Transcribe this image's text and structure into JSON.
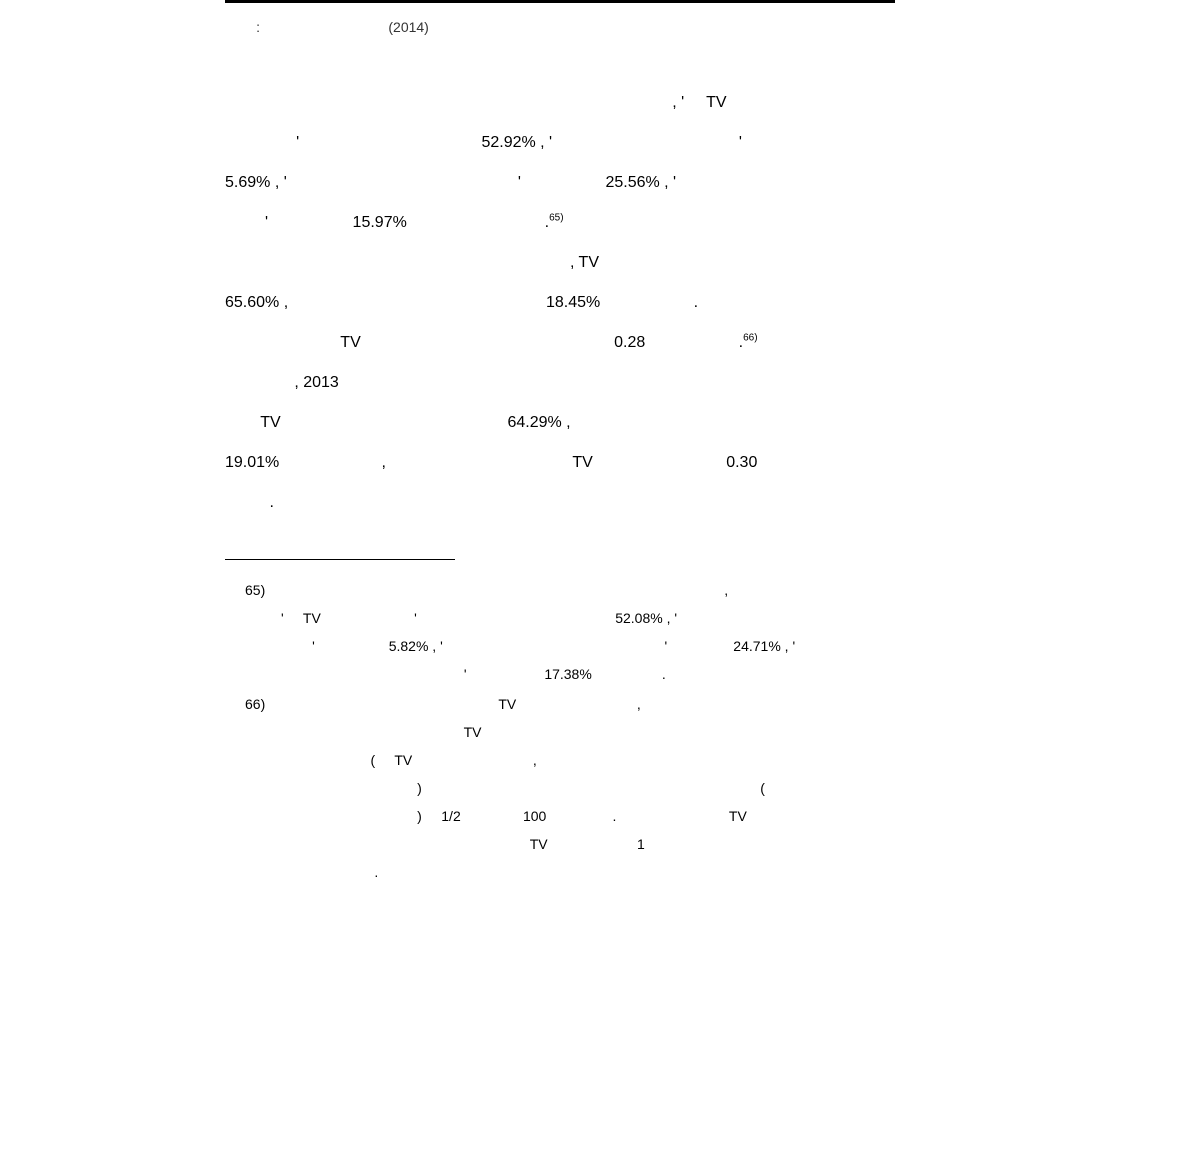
{
  "source": {
    "label": ":",
    "year": "(2014)"
  },
  "paragraphs": {
    "p1": {
      "s1": ", '",
      "s2": "TV",
      "s3": "'",
      "s4": "52.92% , '",
      "s5": "'",
      "s6": "5.69% , '",
      "s7": "'",
      "s8": "25.56% , '",
      "s9": "'",
      "s10": "15.97%",
      "s11": ".",
      "sup1": "65)"
    },
    "p2": {
      "s1": ", TV",
      "s2": "65.60% ,",
      "s3": "18.45%",
      "s4": ".",
      "s5": "TV",
      "s6": "0.28",
      "s7": ".",
      "sup1": "66)"
    },
    "p3": {
      "s1": ", 2013",
      "s2": "TV",
      "s3": "64.29% ,",
      "s4": "19.01%",
      "s5": ",",
      "s6": "TV",
      "s7": "0.30",
      "s8": "."
    }
  },
  "footnotes": {
    "f65": {
      "num": "65)",
      "s1": ",",
      "s2": "'",
      "s3": "TV",
      "s4": "'",
      "s5": "52.08% , '",
      "s6": "'",
      "s7": "5.82% , '",
      "s8": "'",
      "s9": "24.71% , '",
      "s10": "'",
      "s11": "17.38%",
      "s12": "."
    },
    "f66": {
      "num": "66)",
      "s1": "TV",
      "s2": ",",
      "s3": "TV",
      "s4": "(",
      "s5": "TV",
      "s6": ",",
      "s7": ")",
      "s8": "(",
      "s9": ")",
      "s10": "1/2",
      "s11": "100",
      "s12": ".",
      "s13": "TV",
      "s14": "TV",
      "s15": "1",
      "s16": "."
    }
  },
  "colors": {
    "text": "#000000",
    "background": "#ffffff",
    "footnote_text": "#333333"
  },
  "typography": {
    "body_fontsize": 16,
    "footnote_fontsize": 14,
    "line_height_body": 2.5,
    "line_height_footnote": 2.0
  }
}
